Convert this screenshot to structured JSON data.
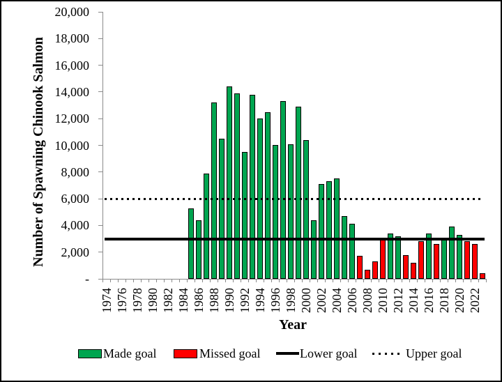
{
  "chart_data": {
    "type": "bar",
    "title": "",
    "ylabel": "Number of Spawning Chinook Salmon",
    "xlabel": "Year",
    "ylim": [
      0,
      20000
    ],
    "ytick_step": 2000,
    "ytick_labels": [
      "-",
      "2,000",
      "4,000",
      "6,000",
      "8,000",
      "10,000",
      "12,000",
      "14,000",
      "16,000",
      "18,000",
      "20,000"
    ],
    "xtick_labels": [
      "1974",
      "1976",
      "1978",
      "1980",
      "1982",
      "1984",
      "1986",
      "1988",
      "1990",
      "1992",
      "1994",
      "1996",
      "1998",
      "2000",
      "2002",
      "2004",
      "2006",
      "2008",
      "2010",
      "2012",
      "2014",
      "2016",
      "2018",
      "2020",
      "2022"
    ],
    "x_axis_year_range": [
      1974,
      2023
    ],
    "grid": false,
    "legend_position": "bottom",
    "lower_goal": 3000,
    "upper_goal": 6000,
    "bars": [
      {
        "year": 1985,
        "value": 5300,
        "status": "made"
      },
      {
        "year": 1986,
        "value": 4400,
        "status": "made"
      },
      {
        "year": 1987,
        "value": 7900,
        "status": "made"
      },
      {
        "year": 1988,
        "value": 13200,
        "status": "made"
      },
      {
        "year": 1989,
        "value": 10500,
        "status": "made"
      },
      {
        "year": 1990,
        "value": 14400,
        "status": "made"
      },
      {
        "year": 1991,
        "value": 13900,
        "status": "made"
      },
      {
        "year": 1992,
        "value": 9500,
        "status": "made"
      },
      {
        "year": 1993,
        "value": 13800,
        "status": "made"
      },
      {
        "year": 1994,
        "value": 12000,
        "status": "made"
      },
      {
        "year": 1995,
        "value": 12500,
        "status": "made"
      },
      {
        "year": 1996,
        "value": 10000,
        "status": "made"
      },
      {
        "year": 1997,
        "value": 13300,
        "status": "made"
      },
      {
        "year": 1998,
        "value": 10100,
        "status": "made"
      },
      {
        "year": 1999,
        "value": 12900,
        "status": "made"
      },
      {
        "year": 2000,
        "value": 10400,
        "status": "made"
      },
      {
        "year": 2001,
        "value": 4400,
        "status": "made"
      },
      {
        "year": 2002,
        "value": 7100,
        "status": "made"
      },
      {
        "year": 2003,
        "value": 7300,
        "status": "made"
      },
      {
        "year": 2004,
        "value": 7500,
        "status": "made"
      },
      {
        "year": 2005,
        "value": 4700,
        "status": "made"
      },
      {
        "year": 2006,
        "value": 4100,
        "status": "made"
      },
      {
        "year": 2007,
        "value": 1700,
        "status": "missed"
      },
      {
        "year": 2008,
        "value": 700,
        "status": "missed"
      },
      {
        "year": 2009,
        "value": 1300,
        "status": "missed"
      },
      {
        "year": 2010,
        "value": 2900,
        "status": "missed"
      },
      {
        "year": 2011,
        "value": 3400,
        "status": "made"
      },
      {
        "year": 2012,
        "value": 3200,
        "status": "made"
      },
      {
        "year": 2013,
        "value": 1800,
        "status": "missed"
      },
      {
        "year": 2014,
        "value": 1200,
        "status": "missed"
      },
      {
        "year": 2015,
        "value": 2800,
        "status": "missed"
      },
      {
        "year": 2016,
        "value": 3400,
        "status": "made"
      },
      {
        "year": 2017,
        "value": 2600,
        "status": "missed"
      },
      {
        "year": 2018,
        "value": 3100,
        "status": "made"
      },
      {
        "year": 2019,
        "value": 3900,
        "status": "made"
      },
      {
        "year": 2020,
        "value": 3300,
        "status": "made"
      },
      {
        "year": 2021,
        "value": 2800,
        "status": "missed"
      },
      {
        "year": 2022,
        "value": 2600,
        "status": "missed"
      },
      {
        "year": 2023,
        "value": 400,
        "status": "missed"
      }
    ],
    "legend": [
      {
        "label": "Made goal",
        "swatch": "green-box"
      },
      {
        "label": "Missed goal",
        "swatch": "red-box"
      },
      {
        "label": "Lower goal",
        "swatch": "solid-line"
      },
      {
        "label": "Upper goal",
        "swatch": "dotted-line"
      }
    ]
  },
  "colors": {
    "made": "#00A550",
    "missed": "#FF0000",
    "goal_line": "#000000",
    "axis": "#8A8A8A",
    "background": "#FFFFFF",
    "frame_border": "#000000"
  }
}
